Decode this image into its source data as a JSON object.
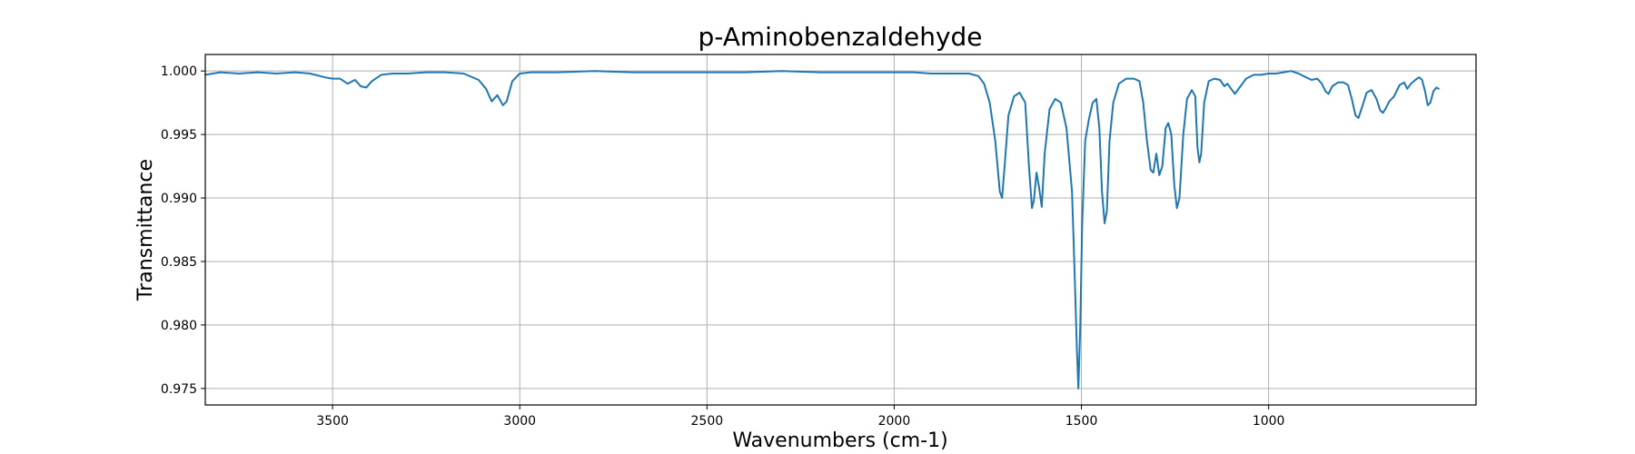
{
  "chart_data": {
    "type": "line",
    "title": "p-Aminobenzaldehyde",
    "xlabel": "Wavenumbers (cm-1)",
    "ylabel": "Transmittance",
    "xlim": [
      3840,
      446
    ],
    "ylim": [
      0.9737,
      1.0013
    ],
    "x_inverted": true,
    "grid": true,
    "xticks": [
      3500,
      3000,
      2500,
      2000,
      1500,
      1000
    ],
    "xtick_labels": [
      "3500",
      "3000",
      "2500",
      "2000",
      "1500",
      "1000"
    ],
    "yticks": [
      0.975,
      0.98,
      0.985,
      0.99,
      0.995,
      1.0
    ],
    "ytick_labels": [
      "0.975",
      "0.980",
      "0.985",
      "0.990",
      "0.995",
      "1.000"
    ],
    "series": [
      {
        "color": "#1f77b4",
        "points": [
          [
            3840,
            0.9997
          ],
          [
            3800,
            0.9999
          ],
          [
            3750,
            0.9998
          ],
          [
            3700,
            0.9999
          ],
          [
            3650,
            0.9998
          ],
          [
            3600,
            0.9999
          ],
          [
            3560,
            0.9998
          ],
          [
            3520,
            0.9995
          ],
          [
            3500,
            0.9994
          ],
          [
            3480,
            0.9994
          ],
          [
            3460,
            0.999
          ],
          [
            3440,
            0.9993
          ],
          [
            3425,
            0.9988
          ],
          [
            3410,
            0.9987
          ],
          [
            3395,
            0.9992
          ],
          [
            3370,
            0.9997
          ],
          [
            3340,
            0.9998
          ],
          [
            3300,
            0.9998
          ],
          [
            3250,
            0.9999
          ],
          [
            3200,
            0.9999
          ],
          [
            3150,
            0.9998
          ],
          [
            3110,
            0.9993
          ],
          [
            3090,
            0.9986
          ],
          [
            3075,
            0.9976
          ],
          [
            3060,
            0.9981
          ],
          [
            3045,
            0.9973
          ],
          [
            3035,
            0.9976
          ],
          [
            3020,
            0.9992
          ],
          [
            3000,
            0.9998
          ],
          [
            2970,
            0.9999
          ],
          [
            2900,
            0.9999
          ],
          [
            2800,
            1.0
          ],
          [
            2700,
            0.9999
          ],
          [
            2600,
            0.9999
          ],
          [
            2500,
            0.9999
          ],
          [
            2400,
            0.9999
          ],
          [
            2300,
            1.0
          ],
          [
            2200,
            0.9999
          ],
          [
            2100,
            0.9999
          ],
          [
            2000,
            0.9999
          ],
          [
            1950,
            0.9999
          ],
          [
            1900,
            0.9998
          ],
          [
            1850,
            0.9998
          ],
          [
            1800,
            0.9998
          ],
          [
            1775,
            0.9996
          ],
          [
            1760,
            0.999
          ],
          [
            1745,
            0.9975
          ],
          [
            1730,
            0.9945
          ],
          [
            1718,
            0.9905
          ],
          [
            1712,
            0.99
          ],
          [
            1705,
            0.9925
          ],
          [
            1695,
            0.9965
          ],
          [
            1680,
            0.998
          ],
          [
            1665,
            0.9983
          ],
          [
            1650,
            0.9975
          ],
          [
            1640,
            0.9925
          ],
          [
            1632,
            0.9892
          ],
          [
            1627,
            0.9898
          ],
          [
            1620,
            0.992
          ],
          [
            1614,
            0.991
          ],
          [
            1606,
            0.9893
          ],
          [
            1598,
            0.9935
          ],
          [
            1585,
            0.997
          ],
          [
            1570,
            0.9978
          ],
          [
            1555,
            0.9975
          ],
          [
            1540,
            0.9955
          ],
          [
            1525,
            0.9905
          ],
          [
            1518,
            0.984
          ],
          [
            1512,
            0.978
          ],
          [
            1508,
            0.975
          ],
          [
            1503,
            0.98
          ],
          [
            1498,
            0.988
          ],
          [
            1490,
            0.9945
          ],
          [
            1480,
            0.9962
          ],
          [
            1470,
            0.9975
          ],
          [
            1460,
            0.9978
          ],
          [
            1452,
            0.9955
          ],
          [
            1445,
            0.9905
          ],
          [
            1438,
            0.988
          ],
          [
            1432,
            0.989
          ],
          [
            1425,
            0.9945
          ],
          [
            1415,
            0.9975
          ],
          [
            1400,
            0.999
          ],
          [
            1380,
            0.9994
          ],
          [
            1360,
            0.9994
          ],
          [
            1345,
            0.9992
          ],
          [
            1335,
            0.9975
          ],
          [
            1325,
            0.9945
          ],
          [
            1315,
            0.9922
          ],
          [
            1308,
            0.992
          ],
          [
            1300,
            0.9935
          ],
          [
            1292,
            0.9918
          ],
          [
            1284,
            0.9925
          ],
          [
            1275,
            0.9955
          ],
          [
            1268,
            0.9959
          ],
          [
            1260,
            0.995
          ],
          [
            1252,
            0.991
          ],
          [
            1245,
            0.9892
          ],
          [
            1238,
            0.99
          ],
          [
            1228,
            0.995
          ],
          [
            1218,
            0.9978
          ],
          [
            1205,
            0.9985
          ],
          [
            1196,
            0.998
          ],
          [
            1190,
            0.994
          ],
          [
            1185,
            0.9928
          ],
          [
            1180,
            0.9935
          ],
          [
            1172,
            0.9975
          ],
          [
            1160,
            0.9992
          ],
          [
            1145,
            0.9994
          ],
          [
            1130,
            0.9993
          ],
          [
            1118,
            0.9988
          ],
          [
            1110,
            0.999
          ],
          [
            1100,
            0.9986
          ],
          [
            1090,
            0.9982
          ],
          [
            1075,
            0.9988
          ],
          [
            1060,
            0.9994
          ],
          [
            1040,
            0.9997
          ],
          [
            1020,
            0.9997
          ],
          [
            1000,
            0.9998
          ],
          [
            980,
            0.9998
          ],
          [
            960,
            0.9999
          ],
          [
            940,
            1.0
          ],
          [
            920,
            0.9998
          ],
          [
            900,
            0.9995
          ],
          [
            885,
            0.9993
          ],
          [
            870,
            0.9994
          ],
          [
            858,
            0.999
          ],
          [
            848,
            0.9984
          ],
          [
            840,
            0.9982
          ],
          [
            830,
            0.9988
          ],
          [
            815,
            0.9991
          ],
          [
            800,
            0.9991
          ],
          [
            788,
            0.9989
          ],
          [
            778,
            0.9978
          ],
          [
            768,
            0.9965
          ],
          [
            760,
            0.9963
          ],
          [
            750,
            0.9972
          ],
          [
            738,
            0.9983
          ],
          [
            725,
            0.9985
          ],
          [
            712,
            0.9978
          ],
          [
            702,
            0.9969
          ],
          [
            695,
            0.9967
          ],
          [
            688,
            0.997
          ],
          [
            678,
            0.9976
          ],
          [
            665,
            0.998
          ],
          [
            650,
            0.9989
          ],
          [
            638,
            0.9991
          ],
          [
            630,
            0.9986
          ],
          [
            620,
            0.999
          ],
          [
            608,
            0.9993
          ],
          [
            598,
            0.9995
          ],
          [
            590,
            0.9993
          ],
          [
            582,
            0.9984
          ],
          [
            575,
            0.9973
          ],
          [
            568,
            0.9975
          ],
          [
            560,
            0.9984
          ],
          [
            552,
            0.9987
          ],
          [
            546,
            0.9986
          ]
        ]
      }
    ]
  }
}
